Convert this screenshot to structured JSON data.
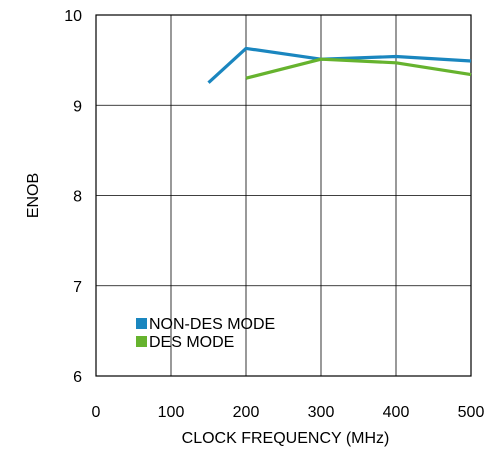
{
  "chart_data": {
    "type": "line",
    "title": "",
    "xlabel": "CLOCK FREQUENCY (MHz)",
    "ylabel": "ENOB",
    "xlim": [
      0,
      500
    ],
    "ylim": [
      6,
      10
    ],
    "xticks": [
      0,
      100,
      200,
      300,
      400,
      500
    ],
    "yticks": [
      6,
      7,
      8,
      9,
      10
    ],
    "xtick_labels": [
      "0",
      "100",
      "200",
      "300",
      "400",
      "500"
    ],
    "ytick_labels": [
      "6",
      "7",
      "8",
      "9",
      "10"
    ],
    "grid": true,
    "legend_position": "bottom-left",
    "series": [
      {
        "name": "NON-DES MODE",
        "color": "#1a86bf",
        "x": [
          150,
          200,
          300,
          400,
          500
        ],
        "y": [
          9.25,
          9.63,
          9.51,
          9.54,
          9.49
        ]
      },
      {
        "name": "DES MODE",
        "color": "#66b32e",
        "x": [
          200,
          300,
          400,
          500
        ],
        "y": [
          9.3,
          9.51,
          9.47,
          9.34
        ]
      }
    ]
  }
}
